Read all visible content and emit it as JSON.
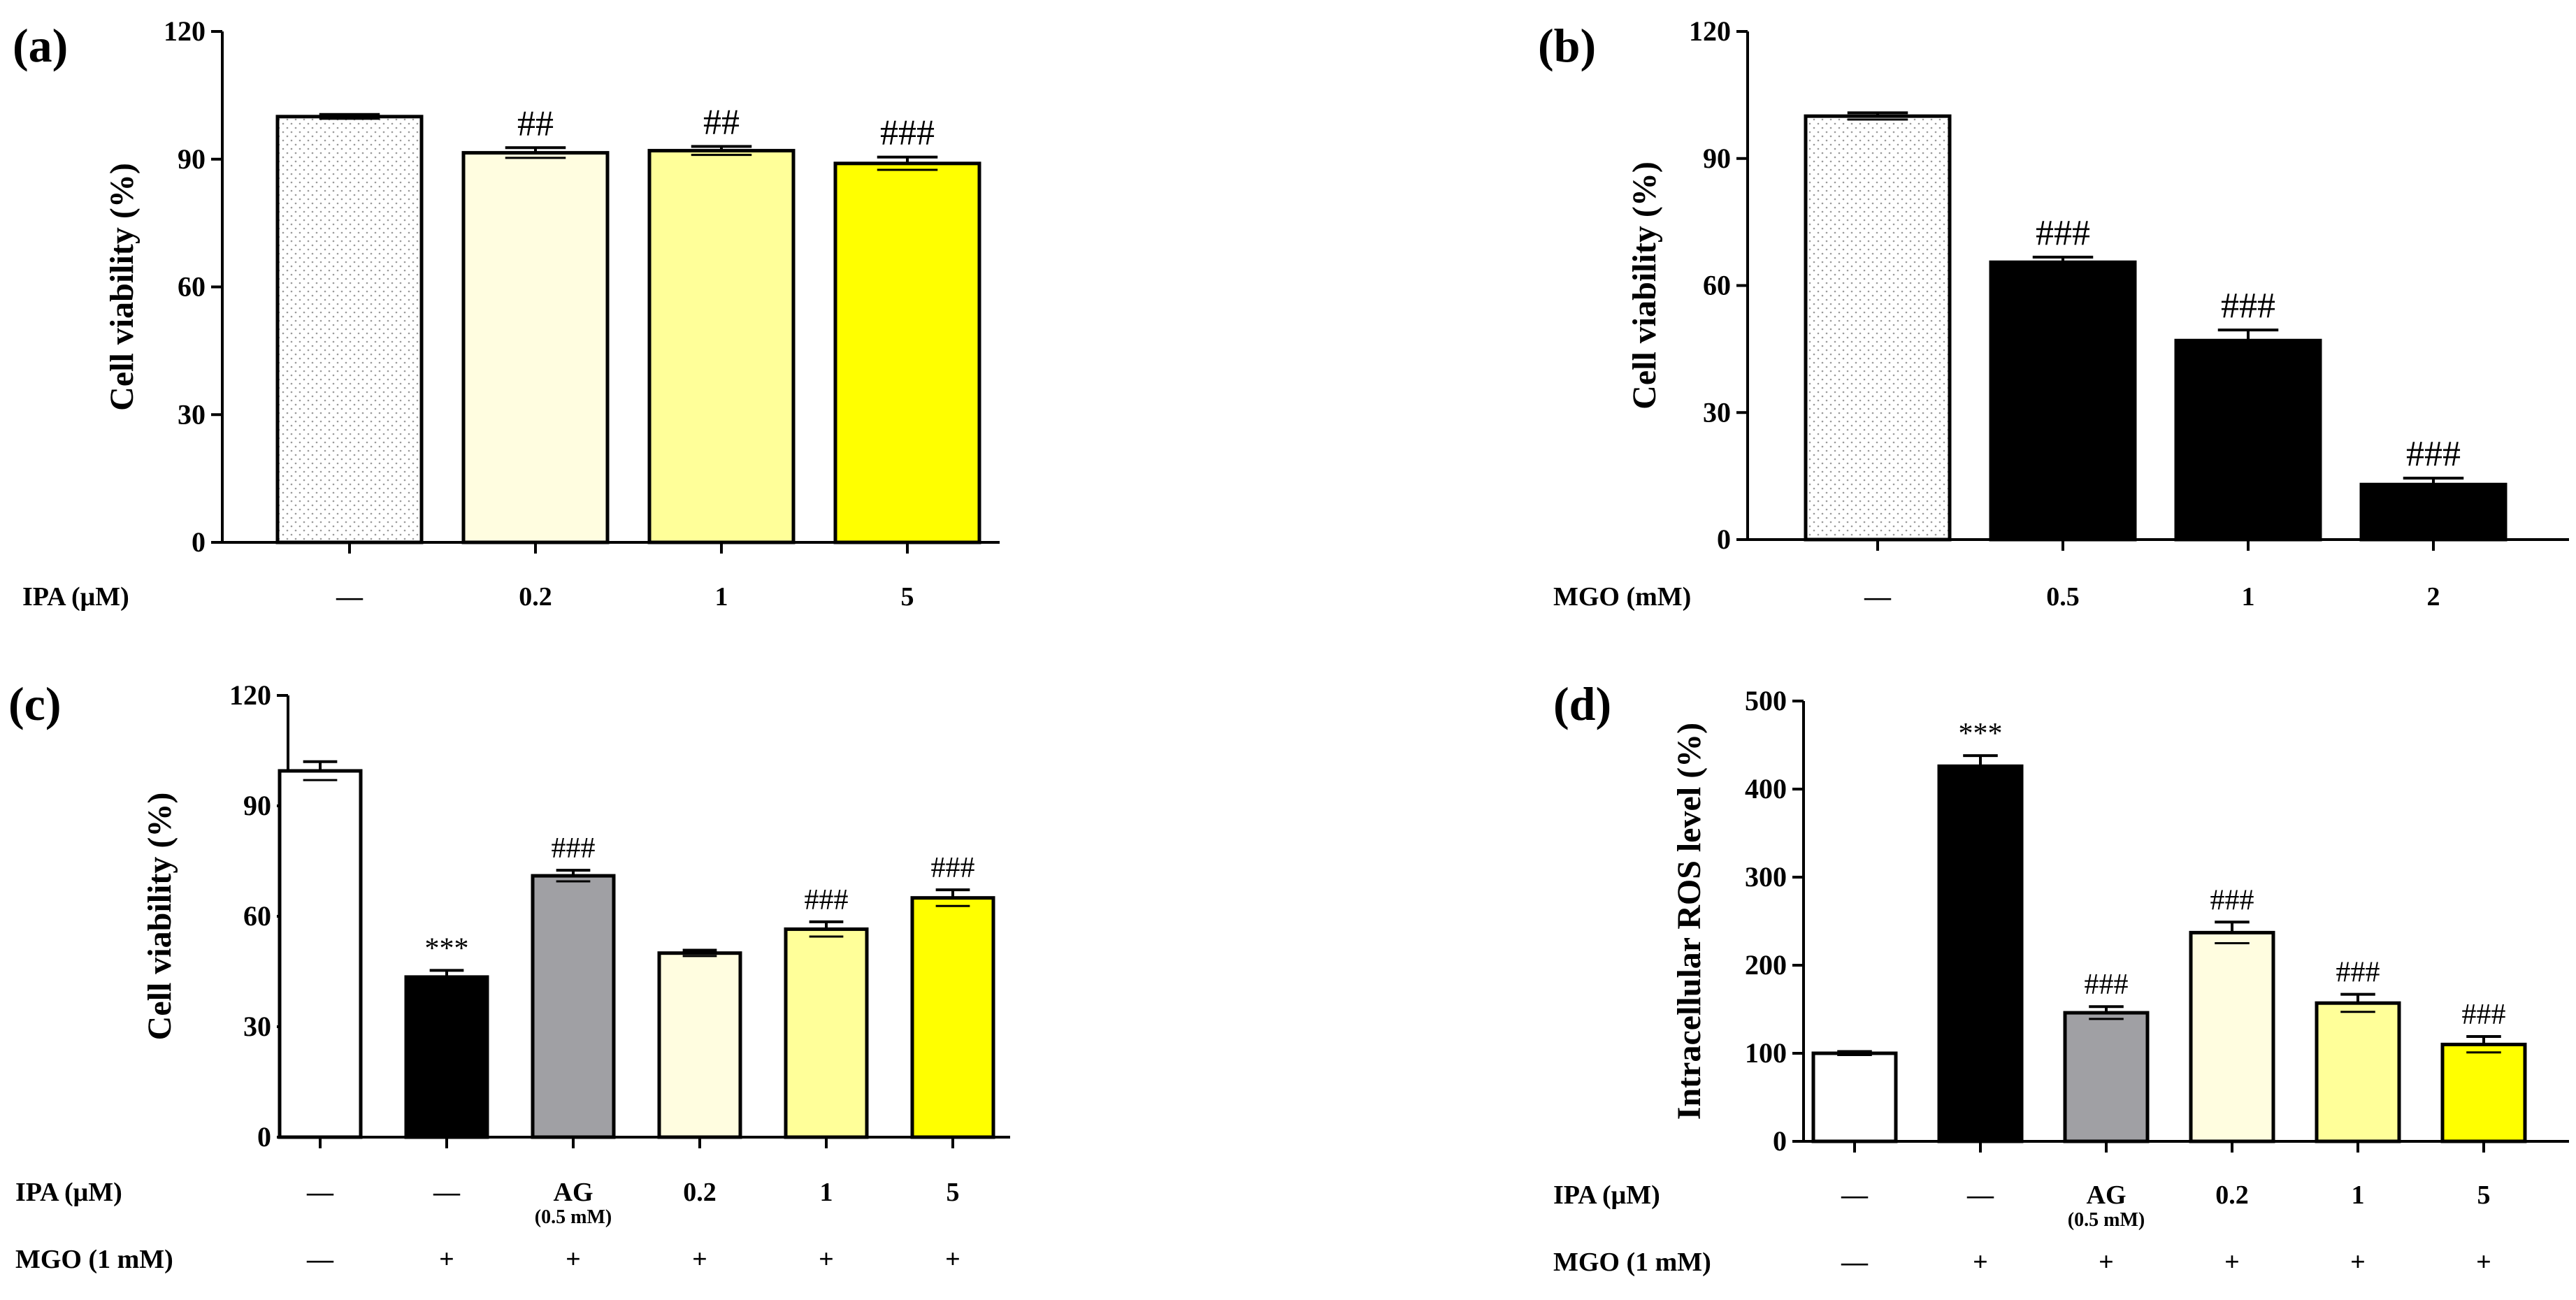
{
  "chart_data": [
    {
      "type": "bar",
      "panel": "(a)",
      "ylabel": "Cell viability  (%)",
      "ylim": [
        0,
        120
      ],
      "yticks": [
        "0",
        "30",
        "60",
        "90",
        "120"
      ],
      "categories": [
        "—",
        "0.2",
        "1",
        "5"
      ],
      "values": [
        100,
        91.5,
        92,
        89
      ],
      "errors": [
        0.5,
        1.2,
        1.0,
        1.5
      ],
      "colors": [
        "#dotted",
        "#fffde0",
        "#ffff99",
        "#ffff00"
      ],
      "annotations": [
        "",
        "##",
        "##",
        "###"
      ],
      "rows": [
        {
          "label": "IPA  (μM)",
          "values": [
            "—",
            "0.2",
            "1",
            "5"
          ]
        }
      ]
    },
    {
      "type": "bar",
      "panel": "(b)",
      "ylabel": "Cell viability  (%)",
      "ylim": [
        0,
        120
      ],
      "yticks": [
        "0",
        "30",
        "60",
        "90",
        "120"
      ],
      "categories": [
        "—",
        "0.5",
        "1",
        "2"
      ],
      "values": [
        100,
        65.5,
        47,
        13
      ],
      "errors": [
        0.8,
        1.2,
        2.5,
        1.5
      ],
      "colors": [
        "#dotted",
        "#000000",
        "#000000",
        "#000000"
      ],
      "annotations": [
        "",
        "###",
        "###",
        "###"
      ],
      "rows": [
        {
          "label": "MGO (mM)",
          "values": [
            "—",
            "0.5",
            "1",
            "2"
          ]
        }
      ]
    },
    {
      "type": "bar",
      "panel": "(c)",
      "ylabel": "Cell viability  (%)",
      "ylim": [
        0,
        120
      ],
      "yticks": [
        "0",
        "30",
        "60",
        "90",
        "120"
      ],
      "categories": [
        "—",
        "—",
        "AG",
        "0.2",
        "1",
        "5"
      ],
      "values": [
        99.5,
        43.5,
        71,
        50,
        56.5,
        65
      ],
      "errors": [
        2.5,
        1.8,
        1.5,
        0.8,
        2.0,
        2.2
      ],
      "colors": [
        "#ffffff",
        "#000000",
        "#a0a0a4",
        "#fffde0",
        "#ffff99",
        "#ffff00"
      ],
      "annotations": [
        "",
        "***",
        "###",
        "",
        "###",
        "###"
      ],
      "rows": [
        {
          "label": "IPA (μM)",
          "values": [
            "—",
            "—",
            "AG",
            "0.2",
            "1",
            "5"
          ],
          "sub": [
            "",
            "",
            "(0.5 mM)",
            "",
            "",
            ""
          ]
        },
        {
          "label": "MGO (1 mM)",
          "values": [
            "—",
            "+",
            "+",
            "+",
            "+",
            "+"
          ]
        }
      ]
    },
    {
      "type": "bar",
      "panel": "(d)",
      "ylabel": "Intracellular  ROS level  (%)",
      "ylim": [
        0,
        500
      ],
      "yticks": [
        "0",
        "100",
        "200",
        "300",
        "400",
        "500"
      ],
      "categories": [
        "—",
        "—",
        "AG",
        "0.2",
        "1",
        "5"
      ],
      "values": [
        100,
        426,
        146,
        237,
        157,
        110
      ],
      "errors": [
        2,
        12,
        7,
        12,
        10,
        9
      ],
      "colors": [
        "#ffffff",
        "#000000",
        "#a0a0a4",
        "#fffde0",
        "#ffff99",
        "#ffff00"
      ],
      "annotations": [
        "",
        "***",
        "###",
        "###",
        "###",
        "###"
      ],
      "rows": [
        {
          "label": "IPA (μM)",
          "values": [
            "—",
            "—",
            "AG",
            "0.2",
            "1",
            "5"
          ],
          "sub": [
            "",
            "",
            "(0.5 mM)",
            "",
            "",
            ""
          ]
        },
        {
          "label": "MGO (1 mM)",
          "values": [
            "—",
            "+",
            "+",
            "+",
            "+",
            "+"
          ]
        }
      ]
    }
  ]
}
